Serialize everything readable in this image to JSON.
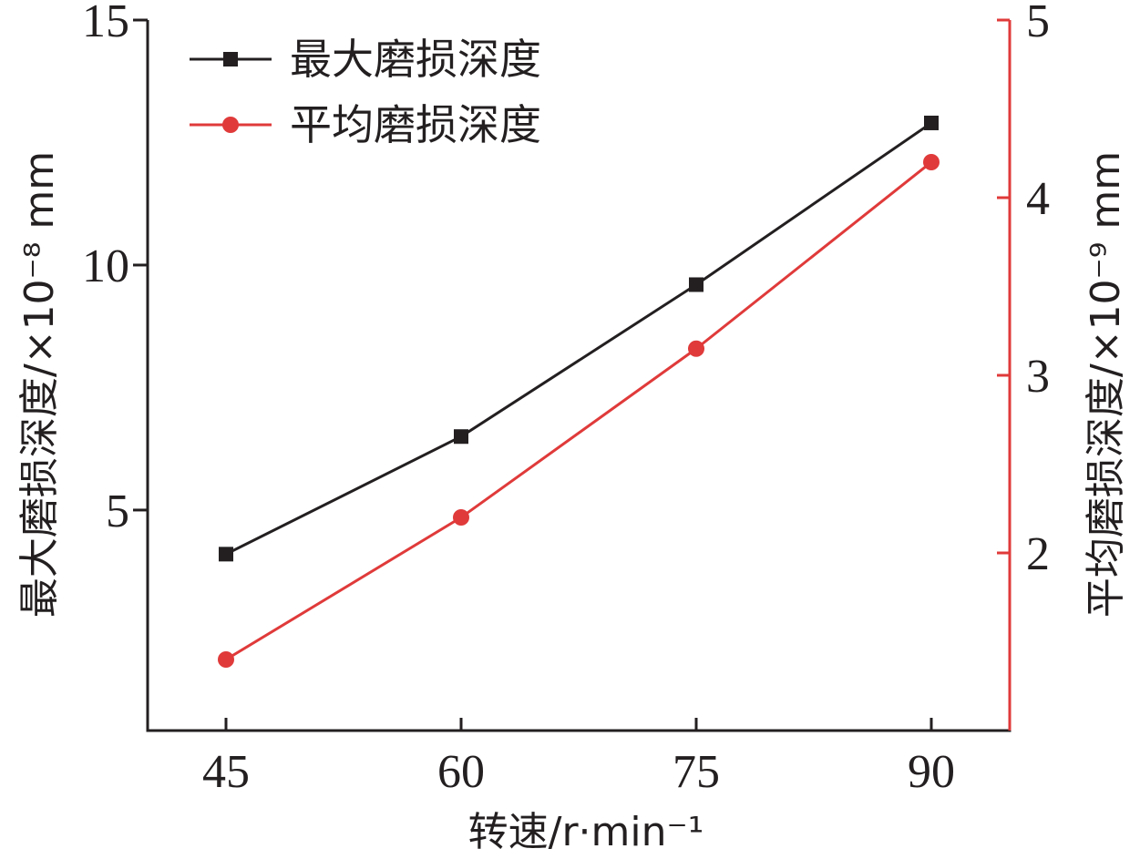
{
  "chart_data": {
    "type": "line",
    "x": [
      45,
      60,
      75,
      90
    ],
    "xlabel": "转速/r·min⁻¹",
    "ylabel_left": "最大磨损深度/×10⁻⁸ mm",
    "ylabel_right": "平均磨损深度/×10⁻⁹ mm",
    "xlim": [
      40,
      95
    ],
    "ylim_left": [
      0.5,
      15
    ],
    "ylim_right": [
      1,
      5
    ],
    "x_ticks": [
      45,
      60,
      75,
      90
    ],
    "y_ticks_left": [
      5,
      10,
      15
    ],
    "y_ticks_right": [
      2,
      3,
      4,
      5
    ],
    "grid": false,
    "legend_position": "top-left",
    "series": [
      {
        "name": "最大磨损深度",
        "axis": "left",
        "values": [
          4.1,
          6.5,
          9.6,
          12.9
        ],
        "color": "#231f20",
        "marker": "square"
      },
      {
        "name": "平均磨损深度",
        "axis": "right",
        "values": [
          1.4,
          2.2,
          3.15,
          4.2
        ],
        "color": "#e03a3a",
        "marker": "circle"
      }
    ]
  }
}
